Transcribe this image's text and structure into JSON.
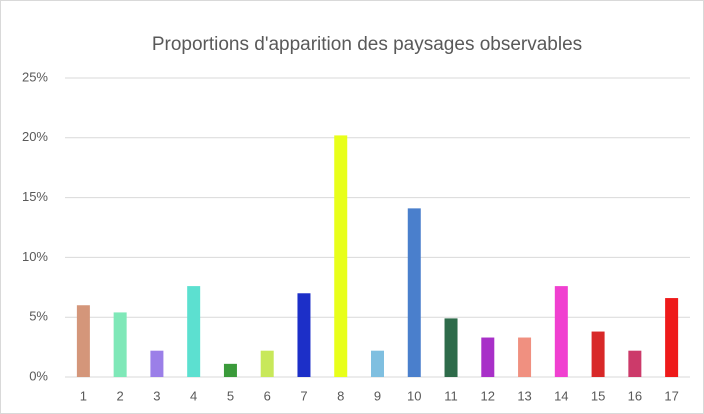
{
  "chart_data": {
    "type": "bar",
    "title": "Proportions d'apparition des paysages observables",
    "categories": [
      "1",
      "2",
      "3",
      "4",
      "5",
      "6",
      "7",
      "8",
      "9",
      "10",
      "11",
      "12",
      "13",
      "14",
      "15",
      "16",
      "17"
    ],
    "values": [
      6.0,
      5.4,
      2.2,
      7.6,
      1.1,
      2.2,
      7.0,
      20.2,
      2.2,
      14.1,
      4.9,
      3.3,
      3.3,
      7.6,
      3.8,
      2.2,
      6.6
    ],
    "colors": [
      "#d4967a",
      "#7fe8b8",
      "#9b7fe8",
      "#5ce0d0",
      "#3a9a3a",
      "#c8e85a",
      "#1c2fc8",
      "#e8ff1a",
      "#7fbfe0",
      "#4a7fcc",
      "#2e6b4a",
      "#a830c8",
      "#f09080",
      "#f040d0",
      "#d82828",
      "#cc3a6a",
      "#ee1a1a"
    ],
    "ylim": [
      0,
      25
    ],
    "yticks": [
      {
        "value": 0,
        "label": "0%"
      },
      {
        "value": 5,
        "label": "5%"
      },
      {
        "value": 10,
        "label": "10%"
      },
      {
        "value": 15,
        "label": "15%"
      },
      {
        "value": 20,
        "label": "20%"
      },
      {
        "value": 25,
        "label": "25%"
      }
    ],
    "grid": true
  }
}
